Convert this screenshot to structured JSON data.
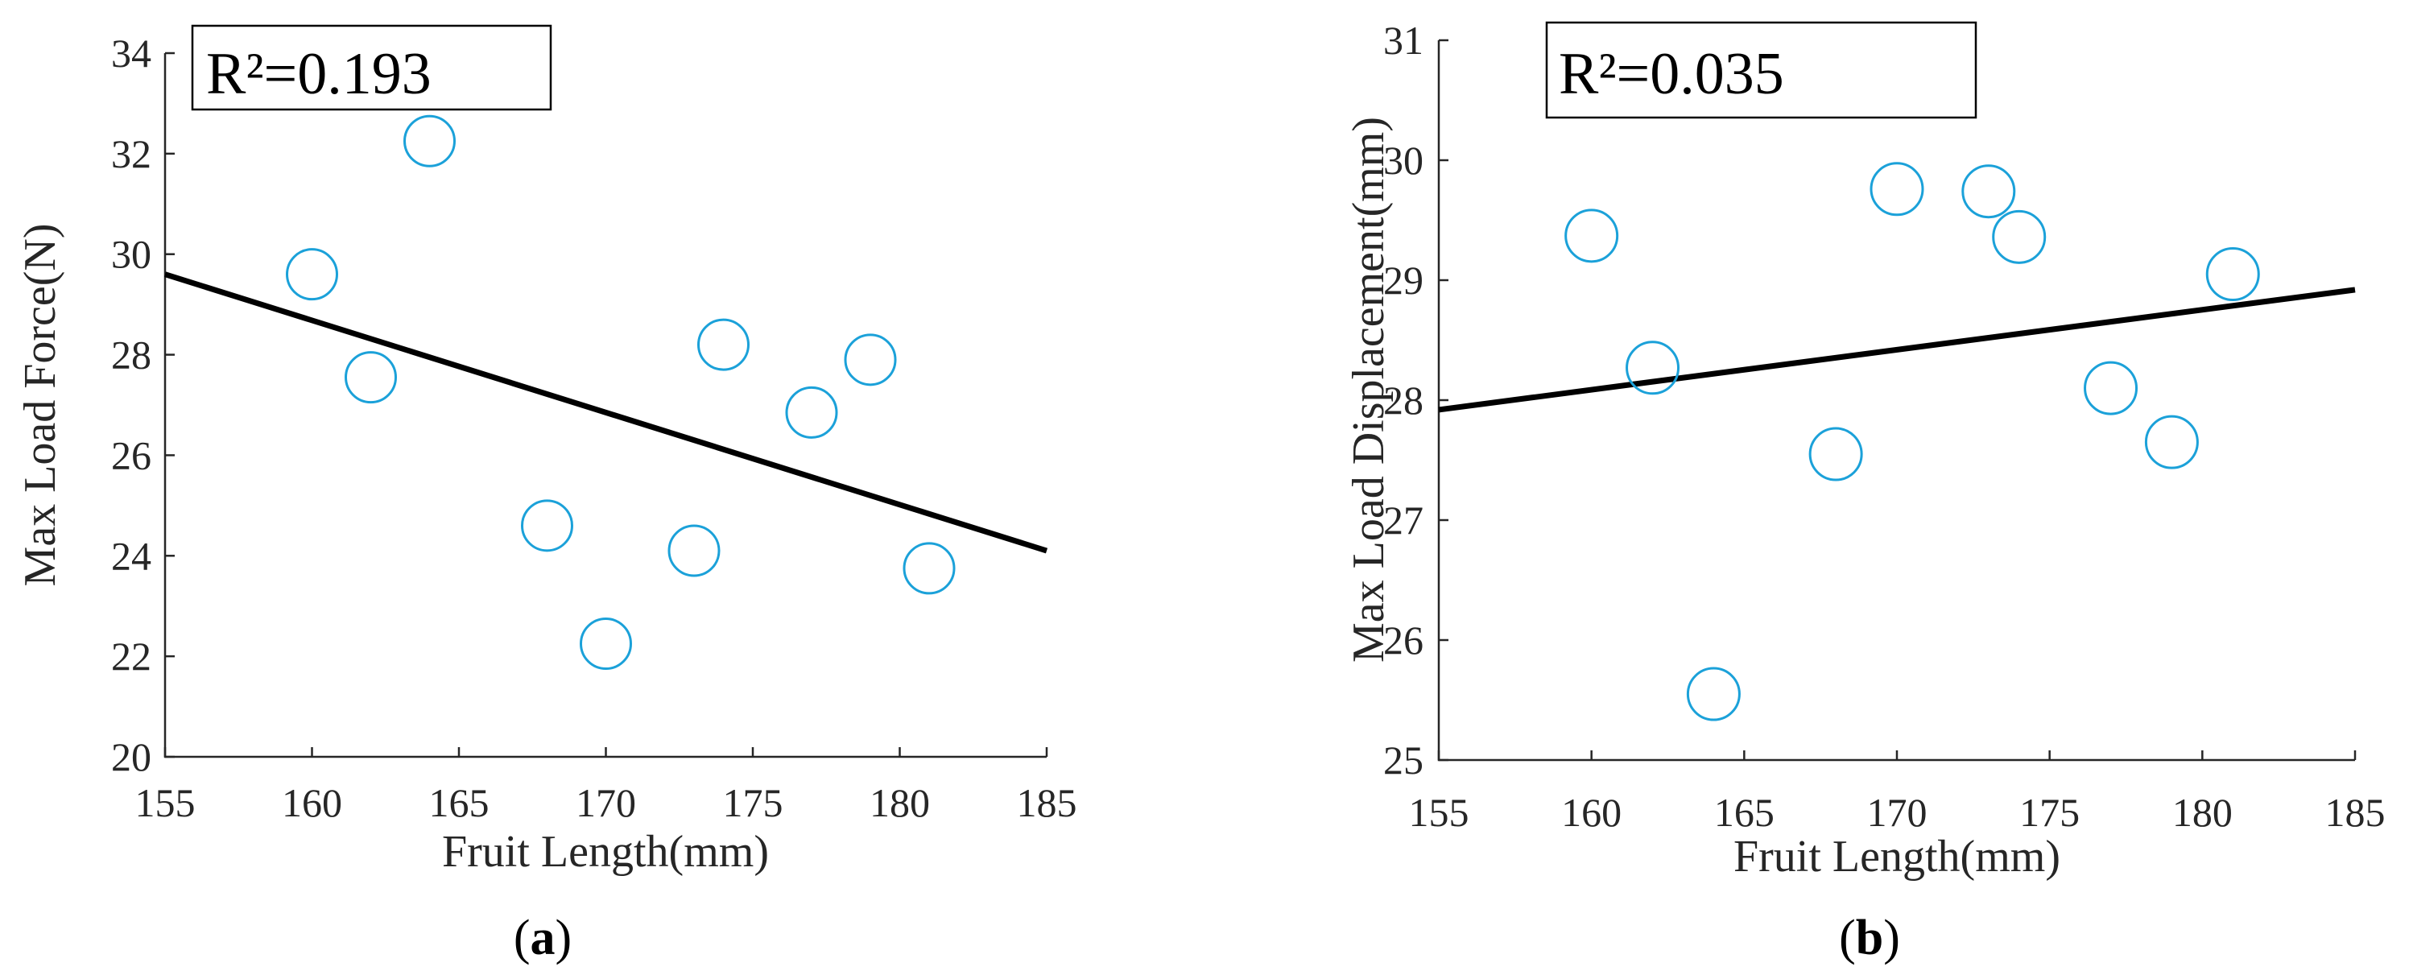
{
  "chart_data": [
    {
      "type": "scatter",
      "id": "a",
      "xlabel": "Fruit Length(mm)",
      "ylabel": "Max Load Force(N)",
      "xlim": [
        155,
        185
      ],
      "ylim": [
        20,
        34
      ],
      "xticks": [
        155,
        160,
        165,
        170,
        175,
        180,
        185
      ],
      "yticks": [
        20,
        22,
        24,
        26,
        28,
        30,
        32,
        34
      ],
      "points": [
        {
          "x": 160,
          "y": 29.6
        },
        {
          "x": 162,
          "y": 27.55
        },
        {
          "x": 164,
          "y": 32.25
        },
        {
          "x": 168,
          "y": 24.6
        },
        {
          "x": 170,
          "y": 22.25
        },
        {
          "x": 173,
          "y": 24.1
        },
        {
          "x": 174,
          "y": 28.2
        },
        {
          "x": 177,
          "y": 26.85
        },
        {
          "x": 179,
          "y": 27.9
        },
        {
          "x": 181,
          "y": 23.75
        }
      ],
      "fit_line": {
        "x": [
          155,
          185
        ],
        "y": [
          29.6,
          24.1
        ]
      },
      "annotation": "R²=0.193",
      "caption_left": "(",
      "caption_letter": "a",
      "caption_right": ")",
      "marker_color": "#1ba1d9",
      "line_color": "#000000"
    },
    {
      "type": "scatter",
      "id": "b",
      "xlabel": "Fruit Length(mm)",
      "ylabel": "Max Load Displacement(mm)",
      "xlim": [
        155,
        185
      ],
      "ylim": [
        25,
        31
      ],
      "xticks": [
        155,
        160,
        165,
        170,
        175,
        180,
        185
      ],
      "yticks": [
        25,
        26,
        27,
        28,
        29,
        30,
        31
      ],
      "points": [
        {
          "x": 160,
          "y": 29.37
        },
        {
          "x": 162,
          "y": 28.27
        },
        {
          "x": 164,
          "y": 25.55
        },
        {
          "x": 168,
          "y": 27.55
        },
        {
          "x": 170,
          "y": 29.76
        },
        {
          "x": 173,
          "y": 29.74
        },
        {
          "x": 174,
          "y": 29.36
        },
        {
          "x": 177,
          "y": 28.1
        },
        {
          "x": 179,
          "y": 27.65
        },
        {
          "x": 181,
          "y": 29.05
        }
      ],
      "fit_line": {
        "x": [
          155,
          185
        ],
        "y": [
          27.92,
          28.92
        ]
      },
      "annotation": "R²=0.035",
      "caption_left": "(",
      "caption_letter": "b",
      "caption_right": ")",
      "marker_color": "#1ba1d9",
      "line_color": "#000000"
    }
  ]
}
